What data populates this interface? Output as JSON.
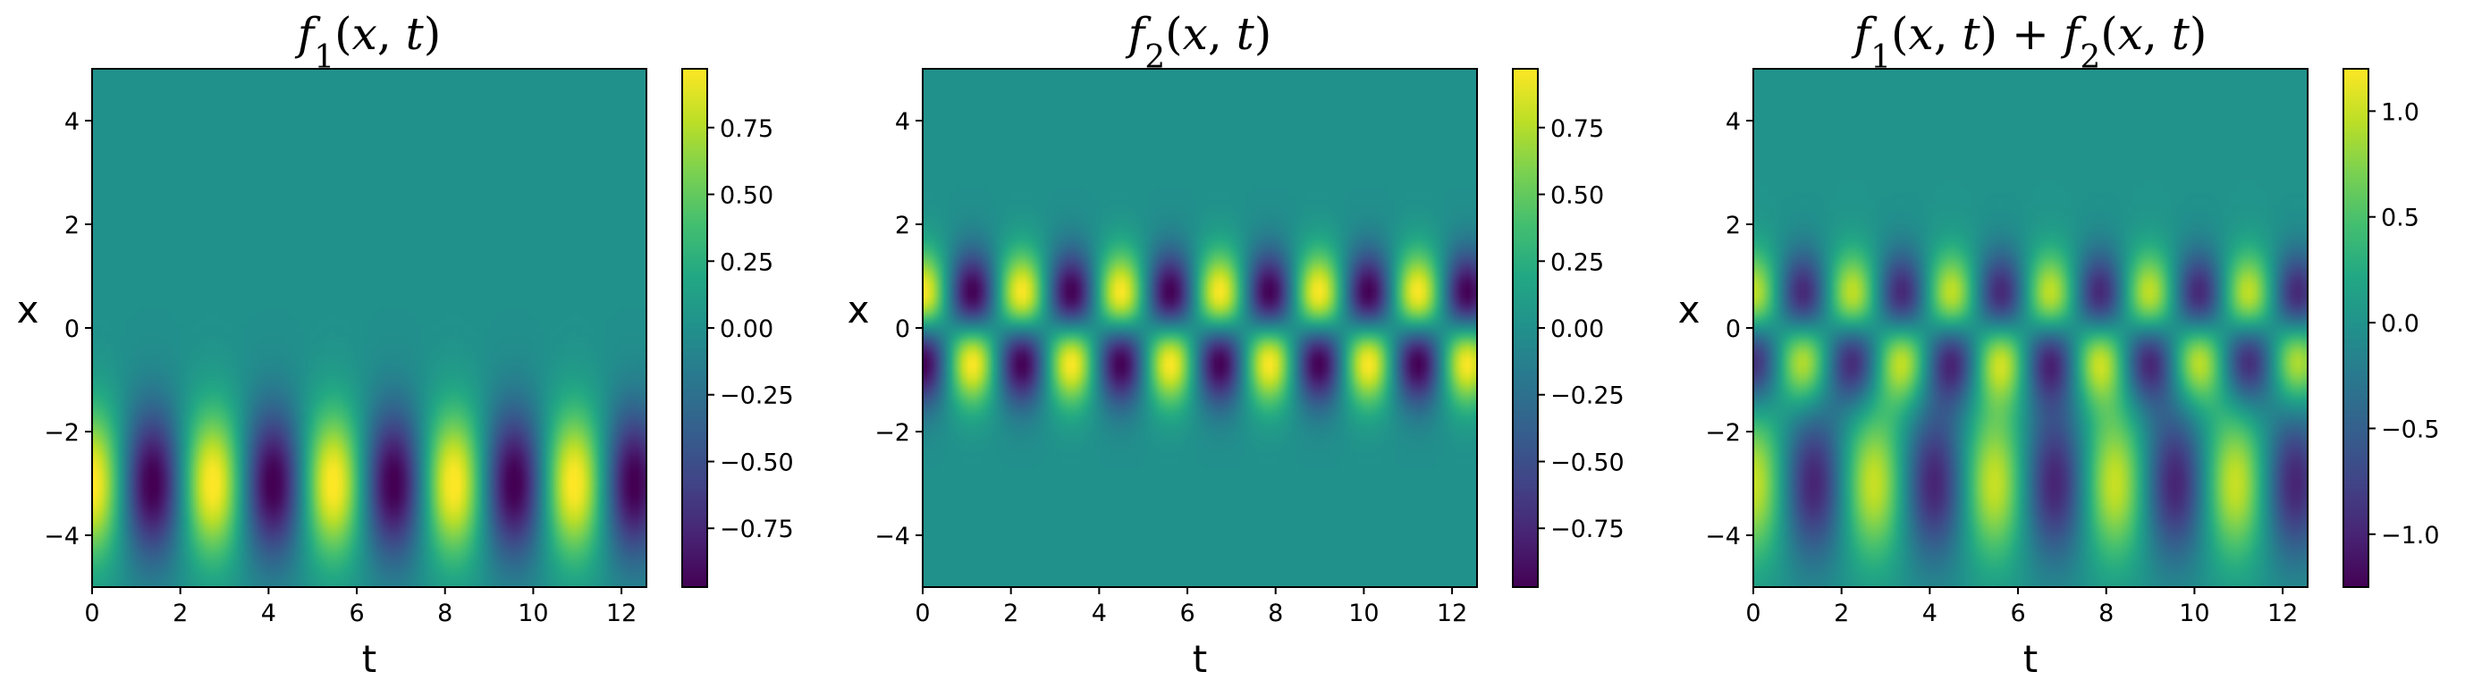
{
  "chart_data": [
    {
      "type": "heatmap",
      "title": "f1(x,t)",
      "title_parts": [
        [
          "f",
          "italic"
        ],
        [
          "1",
          "sub"
        ],
        [
          "(",
          "normal"
        ],
        [
          "x",
          "italic"
        ],
        [
          ", ",
          "normal"
        ],
        [
          "t",
          "italic"
        ],
        [
          ")",
          "normal"
        ]
      ],
      "xlabel": "t",
      "ylabel": "x",
      "xlim": [
        0,
        12.566
      ],
      "ylim": [
        -5,
        5
      ],
      "x_ticks": [
        0,
        2,
        4,
        6,
        8,
        10,
        12
      ],
      "y_ticks": [
        -4,
        -2,
        0,
        2,
        4
      ],
      "colormap": "viridis",
      "clim": [
        -0.97,
        0.97
      ],
      "colorbar_ticks": [
        0.75,
        0.5,
        0.25,
        0.0,
        -0.25,
        -0.5,
        -0.75
      ],
      "colorbar_tick_labels": [
        "0.75",
        "0.50",
        "0.25",
        "0.00",
        "−0.25",
        "−0.50",
        "−0.75"
      ],
      "field": {
        "kind": "f1",
        "omega": 2.3,
        "center": -3,
        "width": 1.414
      }
    },
    {
      "type": "heatmap",
      "title": "f2(x,t)",
      "title_parts": [
        [
          "f",
          "italic"
        ],
        [
          "2",
          "sub"
        ],
        [
          "(",
          "normal"
        ],
        [
          "x",
          "italic"
        ],
        [
          ", ",
          "normal"
        ],
        [
          "t",
          "italic"
        ],
        [
          ")",
          "normal"
        ]
      ],
      "xlabel": "t",
      "ylabel": "x",
      "xlim": [
        0,
        12.566
      ],
      "ylim": [
        -5,
        5
      ],
      "x_ticks": [
        0,
        2,
        4,
        6,
        8,
        10,
        12
      ],
      "y_ticks": [
        -4,
        -2,
        0,
        2,
        4
      ],
      "colormap": "viridis",
      "clim": [
        -0.97,
        0.97
      ],
      "colorbar_ticks": [
        0.75,
        0.5,
        0.25,
        0.0,
        -0.25,
        -0.5,
        -0.75
      ],
      "colorbar_tick_labels": [
        "0.75",
        "0.50",
        "0.25",
        "0.00",
        "−0.25",
        "−0.50",
        "−0.75"
      ],
      "field": {
        "kind": "f2",
        "omega": 2.8,
        "peak": 1.0
      }
    },
    {
      "type": "heatmap",
      "title": "f1(x,t) + f2(x,t)",
      "title_parts": [
        [
          "f",
          "italic"
        ],
        [
          "1",
          "sub"
        ],
        [
          "(",
          "normal"
        ],
        [
          "x",
          "italic"
        ],
        [
          ", ",
          "normal"
        ],
        [
          "t",
          "italic"
        ],
        [
          ") + ",
          "normal"
        ],
        [
          "f",
          "italic"
        ],
        [
          "2",
          "sub"
        ],
        [
          "(",
          "normal"
        ],
        [
          "x",
          "italic"
        ],
        [
          ", ",
          "normal"
        ],
        [
          "t",
          "italic"
        ],
        [
          ")",
          "normal"
        ]
      ],
      "xlabel": "t",
      "ylabel": "x",
      "xlim": [
        0,
        12.566
      ],
      "ylim": [
        -5,
        5
      ],
      "x_ticks": [
        0,
        2,
        4,
        6,
        8,
        10,
        12
      ],
      "y_ticks": [
        -4,
        -2,
        0,
        2,
        4
      ],
      "colormap": "viridis",
      "clim": [
        -1.25,
        1.2
      ],
      "colorbar_ticks": [
        1.0,
        0.5,
        0.0,
        -0.5,
        -1.0
      ],
      "colorbar_tick_labels": [
        "1.0",
        "0.5",
        "0.0",
        "−0.5",
        "−1.0"
      ],
      "field": {
        "kind": "sum"
      }
    }
  ]
}
